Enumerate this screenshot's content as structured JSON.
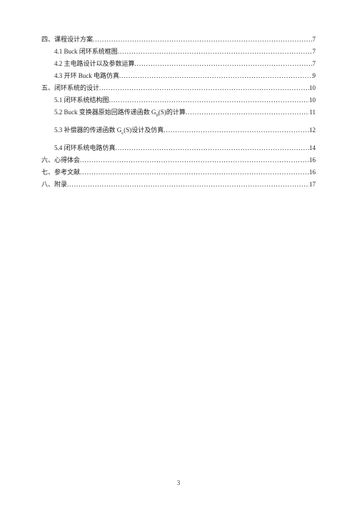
{
  "fontSize": 9,
  "pageNumber": "3",
  "toc": [
    {
      "indent": 0,
      "label": "四、课程设计方案 ",
      "page": "7",
      "formula": null
    },
    {
      "indent": 1,
      "label": "4.1 Buck 闭环系统框图 ",
      "page": "7",
      "formula": null
    },
    {
      "indent": 1,
      "label": "4.2  主电路设计以及参数运算 ",
      "page": "7",
      "formula": null
    },
    {
      "indent": 1,
      "label": "4.3  开环 Buck 电路仿真 ",
      "page": "9",
      "formula": null
    },
    {
      "indent": 0,
      "label": "五、闭环系统的设计 ",
      "page": "10",
      "formula": null
    },
    {
      "indent": 1,
      "label": "5.1  闭环系统结构图 ",
      "page": "10",
      "formula": null
    },
    {
      "indent": 1,
      "label": "5.2 Buck 变换器原始回路传递函数 ",
      "page": "11",
      "formula": {
        "base": "G",
        "sub": "0",
        "arg": "S",
        "suffix": "的计算"
      }
    },
    {
      "indent": 1,
      "label": "5.3  补偿器的传递函数 ",
      "page": "12",
      "formula": {
        "base": "G",
        "sub": "c",
        "arg": "S",
        "suffix": "设计及仿真"
      }
    },
    {
      "indent": 1,
      "label": "5.4  闭环系统电路仿真 ",
      "page": "14",
      "formula": null
    },
    {
      "indent": 0,
      "label": "六、心得体会 ",
      "page": "16",
      "formula": null
    },
    {
      "indent": 0,
      "label": "七、参考文献 ",
      "page": "16",
      "formula": null
    },
    {
      "indent": 0,
      "label": "八、附录 ",
      "page": "17",
      "formula": null
    }
  ]
}
